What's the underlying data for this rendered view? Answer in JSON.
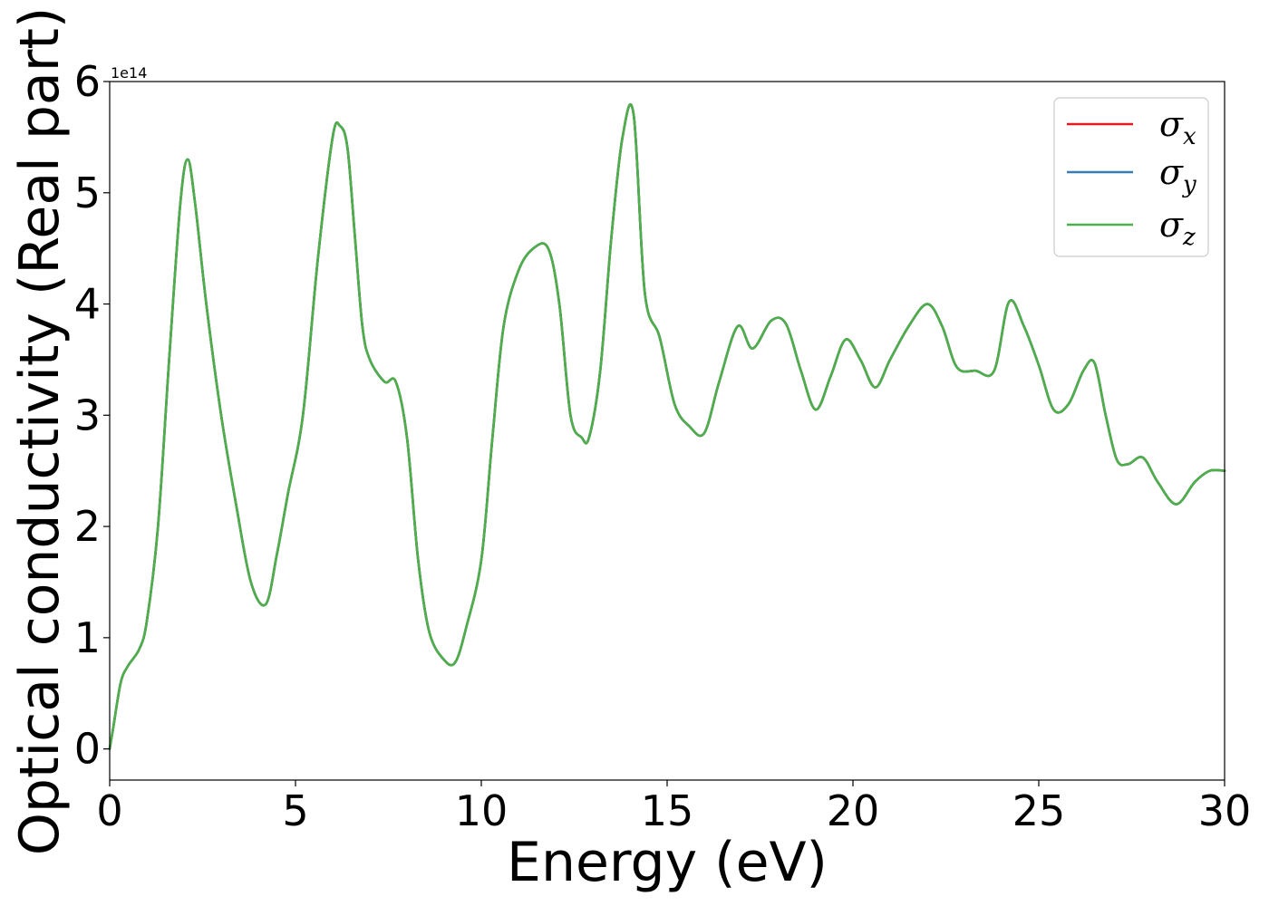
{
  "chart_data": {
    "type": "line",
    "xlabel": "Energy (eV)",
    "ylabel": "Optical conductivity (Real part)",
    "y_offset_label": "1e14",
    "y_scale_factor": 100000000000000.0,
    "xlim": [
      0,
      30
    ],
    "ylim": [
      -0.28,
      6
    ],
    "xticks": [
      0,
      5,
      10,
      15,
      20,
      25,
      30
    ],
    "yticks": [
      0,
      1,
      2,
      3,
      4,
      5,
      6
    ],
    "grid": false,
    "legend_position": "top-right",
    "series": [
      {
        "name": "σx",
        "symbol": "σ",
        "subscript": "x",
        "color": "#e41a1c"
      },
      {
        "name": "σy",
        "symbol": "σ",
        "subscript": "y",
        "color": "#377eb8"
      },
      {
        "name": "σz",
        "symbol": "σ",
        "subscript": "z",
        "color": "#4daf4a"
      }
    ],
    "x": [
      0,
      0.1,
      0.3,
      0.5,
      0.8,
      1.0,
      1.3,
      1.6,
      1.9,
      2.1,
      2.3,
      2.6,
      3.0,
      3.4,
      3.8,
      4.2,
      4.5,
      4.8,
      5.2,
      5.6,
      6.0,
      6.2,
      6.4,
      6.6,
      6.8,
      7.0,
      7.4,
      7.7,
      8.0,
      8.3,
      8.6,
      9.0,
      9.3,
      9.6,
      10.0,
      10.3,
      10.6,
      11.0,
      11.4,
      11.8,
      12.1,
      12.4,
      12.7,
      12.9,
      13.2,
      13.5,
      13.8,
      14.1,
      14.4,
      14.8,
      15.2,
      15.6,
      16.0,
      16.4,
      16.9,
      17.3,
      17.8,
      18.2,
      18.6,
      19.0,
      19.4,
      19.8,
      20.2,
      20.6,
      21.0,
      21.5,
      22.0,
      22.4,
      22.8,
      23.3,
      23.8,
      24.2,
      24.6,
      25.0,
      25.4,
      25.8,
      26.2,
      26.5,
      26.8,
      27.1,
      27.4,
      27.8,
      28.2,
      28.7,
      29.2,
      29.6,
      30.0
    ],
    "values": [
      0.0,
      0.2,
      0.6,
      0.75,
      0.9,
      1.15,
      2.0,
      3.5,
      4.9,
      5.3,
      4.9,
      4.0,
      3.0,
      2.2,
      1.5,
      1.3,
      1.75,
      2.3,
      3.0,
      4.4,
      5.5,
      5.6,
      5.4,
      4.6,
      3.8,
      3.5,
      3.3,
      3.3,
      2.8,
      1.7,
      1.05,
      0.8,
      0.78,
      1.1,
      1.7,
      2.8,
      3.8,
      4.3,
      4.5,
      4.5,
      4.0,
      3.0,
      2.8,
      2.8,
      3.4,
      4.6,
      5.5,
      5.7,
      4.1,
      3.7,
      3.1,
      2.9,
      2.84,
      3.3,
      3.8,
      3.6,
      3.85,
      3.82,
      3.4,
      3.05,
      3.35,
      3.68,
      3.5,
      3.25,
      3.5,
      3.8,
      4.0,
      3.8,
      3.43,
      3.4,
      3.4,
      4.02,
      3.8,
      3.45,
      3.05,
      3.1,
      3.4,
      3.47,
      3.0,
      2.6,
      2.56,
      2.62,
      2.4,
      2.2,
      2.4,
      2.5,
      2.5
    ]
  }
}
